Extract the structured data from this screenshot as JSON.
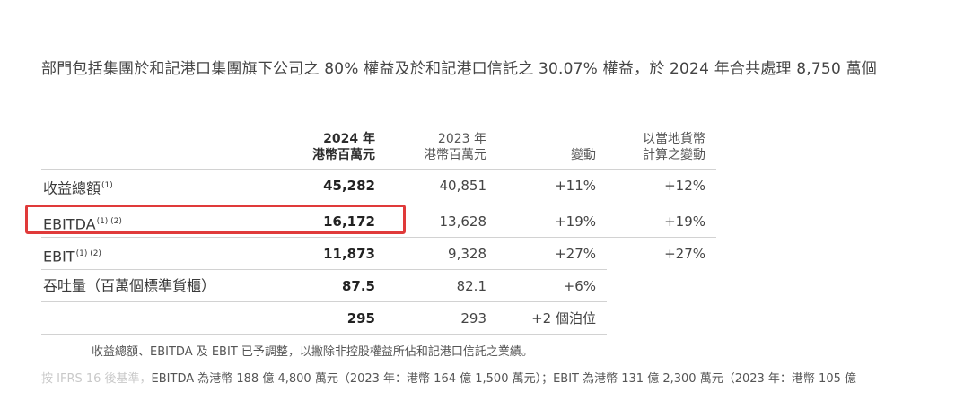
{
  "intro": "部門包括集團於和記港口集團旗下公司之 80% 權益及於和記港口信託之 30.07% 權益，於 2024 年合共處理 8,750 萬個",
  "headers": {
    "col1_line1": "2024 年",
    "col1_line2": "港幣百萬元",
    "col2_line1": "2023 年",
    "col2_line2": "港幣百萬元",
    "col3": "變動",
    "col4_line1": "以當地貨幣",
    "col4_line2": "計算之變動"
  },
  "rows": [
    {
      "label": "收益總額",
      "sup": "(1)",
      "v2024": "45,282",
      "v2023": "40,851",
      "change": "+11%",
      "local": "+12%"
    },
    {
      "label": "EBITDA",
      "sup": "(1) (2)",
      "v2024": "16,172",
      "v2023": "13,628",
      "change": "+19%",
      "local": "+19%"
    },
    {
      "label": "EBIT",
      "sup": "(1) (2)",
      "v2024": "11,873",
      "v2023": "9,328",
      "change": "+27%",
      "local": "+27%"
    },
    {
      "label": "吞吐量（百萬個標準貨櫃）",
      "sup": "",
      "v2024": "87.5",
      "v2023": "82.1",
      "change": "+6%",
      "local": ""
    },
    {
      "label": "",
      "sup": "",
      "v2024": "295",
      "v2023": "293",
      "change": "+2 個泊位",
      "local": ""
    }
  ],
  "footnotes": {
    "note1": "收益總額、EBITDA 及 EBIT 已予調整，以撇除非控股權益所佔和記港口信託之業績。",
    "note2_prefix": "按 IFRS 16 後基準，",
    "note2": "EBITDA 為港幣 188 億 4,800 萬元（2023 年：港幣 164 億 1,500 萬元）；EBIT 為港幣 131 億 2,300 萬元（2023 年：港幣 105 億"
  }
}
